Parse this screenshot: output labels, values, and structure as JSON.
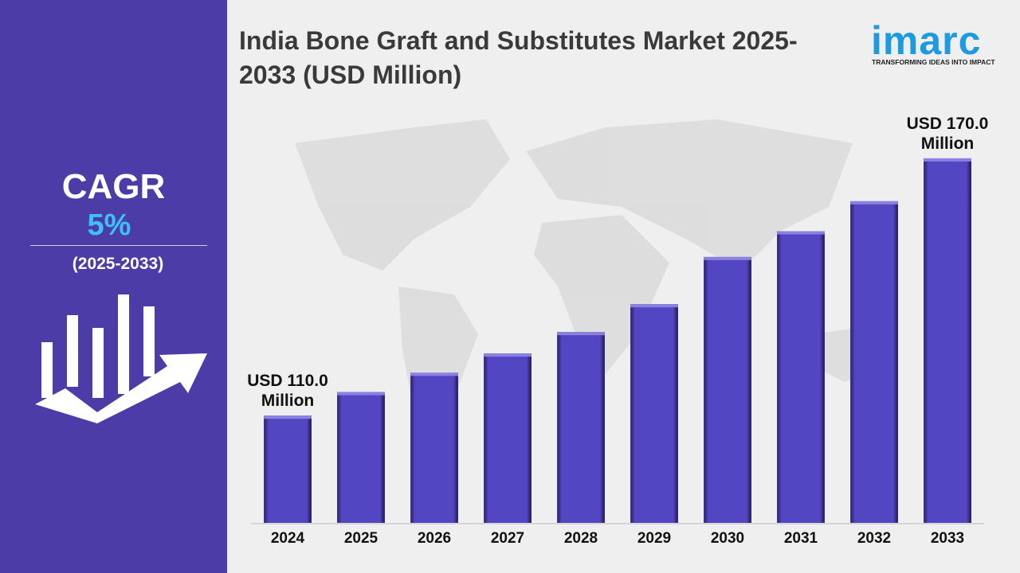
{
  "chart_data": {
    "type": "bar",
    "title": "India Bone Graft and Substitutes Market 2025-2033 (USD Million)",
    "categories": [
      "2024",
      "2025",
      "2026",
      "2027",
      "2028",
      "2029",
      "2030",
      "2031",
      "2032",
      "2033"
    ],
    "values": [
      110,
      115.5,
      120,
      124.5,
      129.5,
      136,
      147,
      153,
      160,
      170
    ],
    "value_labels": [
      "USD 110.0 Million",
      null,
      null,
      null,
      null,
      null,
      null,
      null,
      null,
      "USD 170.0 Million"
    ],
    "color": "#5346c2",
    "ylim": [
      85,
      175
    ]
  },
  "sidebar": {
    "label": "CAGR",
    "value": "5%",
    "period": "(2025-2033)"
  },
  "logo": {
    "name": "imarc",
    "tagline": "TRANSFORMING IDEAS INTO IMPACT"
  }
}
